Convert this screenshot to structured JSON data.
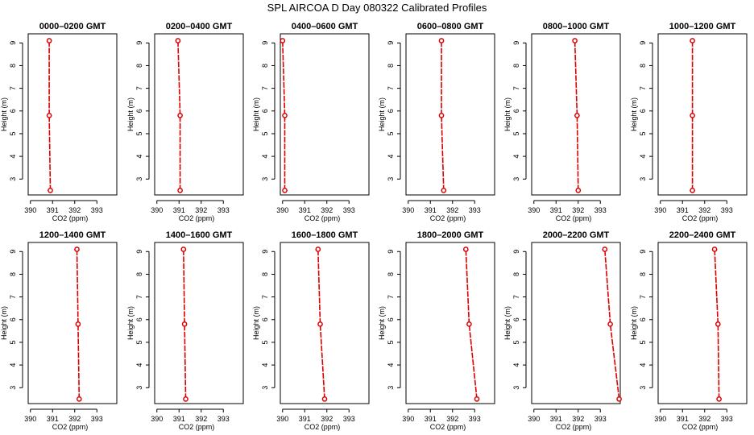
{
  "figure": {
    "title": "SPL AIRCOA D  Day 080322  Calibrated Profiles"
  },
  "chart_data": [
    {
      "type": "line",
      "title": "0000–0200 GMT",
      "xlabel": "CO2 (ppm)",
      "ylabel": "Height (m)",
      "xlim": [
        389.9,
        393.9
      ],
      "ylim": [
        2.3,
        9.4
      ],
      "xticks": [
        390,
        391,
        392,
        393
      ],
      "yticks": [
        3,
        4,
        5,
        6,
        7,
        8,
        9
      ],
      "x": [
        390.9,
        390.85,
        390.85
      ],
      "y": [
        2.5,
        5.8,
        9.1
      ],
      "color": "#dd0000",
      "grid": false
    },
    {
      "type": "line",
      "title": "0200–0400 GMT",
      "xlabel": "CO2 (ppm)",
      "ylabel": "Height (m)",
      "xlim": [
        389.9,
        393.9
      ],
      "ylim": [
        2.3,
        9.4
      ],
      "xticks": [
        390,
        391,
        392,
        393
      ],
      "yticks": [
        3,
        4,
        5,
        6,
        7,
        8,
        9
      ],
      "x": [
        391.05,
        391.05,
        390.95
      ],
      "y": [
        2.5,
        5.8,
        9.1
      ],
      "color": "#dd0000",
      "grid": false
    },
    {
      "type": "line",
      "title": "0400–0600 GMT",
      "xlabel": "CO2 (ppm)",
      "ylabel": "Height (m)",
      "xlim": [
        389.9,
        393.9
      ],
      "ylim": [
        2.3,
        9.4
      ],
      "xticks": [
        390,
        391,
        392,
        393
      ],
      "yticks": [
        3,
        4,
        5,
        6,
        7,
        8,
        9
      ],
      "x": [
        390.1,
        390.1,
        390.0
      ],
      "y": [
        2.5,
        5.8,
        9.1
      ],
      "color": "#dd0000",
      "grid": false
    },
    {
      "type": "line",
      "title": "0600–0800 GMT",
      "xlabel": "CO2 (ppm)",
      "ylabel": "Height (m)",
      "xlim": [
        389.9,
        393.9
      ],
      "ylim": [
        2.3,
        9.4
      ],
      "xticks": [
        390,
        391,
        392,
        393
      ],
      "yticks": [
        3,
        4,
        5,
        6,
        7,
        8,
        9
      ],
      "x": [
        391.6,
        391.5,
        391.5
      ],
      "y": [
        2.5,
        5.8,
        9.1
      ],
      "color": "#dd0000",
      "grid": false
    },
    {
      "type": "line",
      "title": "0800–1000 GMT",
      "xlabel": "CO2 (ppm)",
      "ylabel": "Height (m)",
      "xlim": [
        389.9,
        393.9
      ],
      "ylim": [
        2.3,
        9.4
      ],
      "xticks": [
        390,
        391,
        392,
        393
      ],
      "yticks": [
        3,
        4,
        5,
        6,
        7,
        8,
        9
      ],
      "x": [
        392.0,
        391.95,
        391.85
      ],
      "y": [
        2.5,
        5.8,
        9.1
      ],
      "color": "#dd0000",
      "grid": false
    },
    {
      "type": "line",
      "title": "1000–1200 GMT",
      "xlabel": "CO2 (ppm)",
      "ylabel": "Height (m)",
      "xlim": [
        389.9,
        393.9
      ],
      "ylim": [
        2.3,
        9.4
      ],
      "xticks": [
        390,
        391,
        392,
        393
      ],
      "yticks": [
        3,
        4,
        5,
        6,
        7,
        8,
        9
      ],
      "x": [
        391.45,
        391.45,
        391.45
      ],
      "y": [
        2.5,
        5.8,
        9.1
      ],
      "color": "#dd0000",
      "grid": false
    },
    {
      "type": "line",
      "title": "1200–1400 GMT",
      "xlabel": "CO2 (ppm)",
      "ylabel": "Height (m)",
      "xlim": [
        389.9,
        393.9
      ],
      "ylim": [
        2.3,
        9.4
      ],
      "xticks": [
        390,
        391,
        392,
        393
      ],
      "yticks": [
        3,
        4,
        5,
        6,
        7,
        8,
        9
      ],
      "x": [
        392.2,
        392.15,
        392.1
      ],
      "y": [
        2.5,
        5.8,
        9.1
      ],
      "color": "#dd0000",
      "grid": false
    },
    {
      "type": "line",
      "title": "1400–1600 GMT",
      "xlabel": "CO2 (ppm)",
      "ylabel": "Height (m)",
      "xlim": [
        389.9,
        393.9
      ],
      "ylim": [
        2.3,
        9.4
      ],
      "xticks": [
        390,
        391,
        392,
        393
      ],
      "yticks": [
        3,
        4,
        5,
        6,
        7,
        8,
        9
      ],
      "x": [
        391.3,
        391.25,
        391.2
      ],
      "y": [
        2.5,
        5.8,
        9.1
      ],
      "color": "#dd0000",
      "grid": false
    },
    {
      "type": "line",
      "title": "1600–1800 GMT",
      "xlabel": "CO2 (ppm)",
      "ylabel": "Height (m)",
      "xlim": [
        389.9,
        393.9
      ],
      "ylim": [
        2.3,
        9.4
      ],
      "xticks": [
        390,
        391,
        392,
        393
      ],
      "yticks": [
        3,
        4,
        5,
        6,
        7,
        8,
        9
      ],
      "x": [
        391.9,
        391.7,
        391.6
      ],
      "y": [
        2.5,
        5.8,
        9.1
      ],
      "color": "#dd0000",
      "grid": false
    },
    {
      "type": "line",
      "title": "1800–2000 GMT",
      "xlabel": "CO2 (ppm)",
      "ylabel": "Height (m)",
      "xlim": [
        389.9,
        393.9
      ],
      "ylim": [
        2.3,
        9.4
      ],
      "xticks": [
        390,
        391,
        392,
        393
      ],
      "yticks": [
        3,
        4,
        5,
        6,
        7,
        8,
        9
      ],
      "x": [
        393.1,
        392.75,
        392.6
      ],
      "y": [
        2.5,
        5.8,
        9.1
      ],
      "color": "#dd0000",
      "grid": false
    },
    {
      "type": "line",
      "title": "2000–2200 GMT",
      "xlabel": "CO2 (ppm)",
      "ylabel": "Height (m)",
      "xlim": [
        389.9,
        393.9
      ],
      "ylim": [
        2.3,
        9.4
      ],
      "xticks": [
        390,
        391,
        392,
        393
      ],
      "yticks": [
        3,
        4,
        5,
        6,
        7,
        8,
        9
      ],
      "x": [
        393.85,
        393.45,
        393.2
      ],
      "y": [
        2.5,
        5.8,
        9.1
      ],
      "color": "#dd0000",
      "grid": false
    },
    {
      "type": "line",
      "title": "2200–2400 GMT",
      "xlabel": "CO2 (ppm)",
      "ylabel": "Height (m)",
      "xlim": [
        389.9,
        393.9
      ],
      "ylim": [
        2.3,
        9.4
      ],
      "xticks": [
        390,
        391,
        392,
        393
      ],
      "yticks": [
        3,
        4,
        5,
        6,
        7,
        8,
        9
      ],
      "x": [
        392.65,
        392.6,
        392.45
      ],
      "y": [
        2.5,
        5.8,
        9.1
      ],
      "color": "#dd0000",
      "grid": false
    }
  ]
}
